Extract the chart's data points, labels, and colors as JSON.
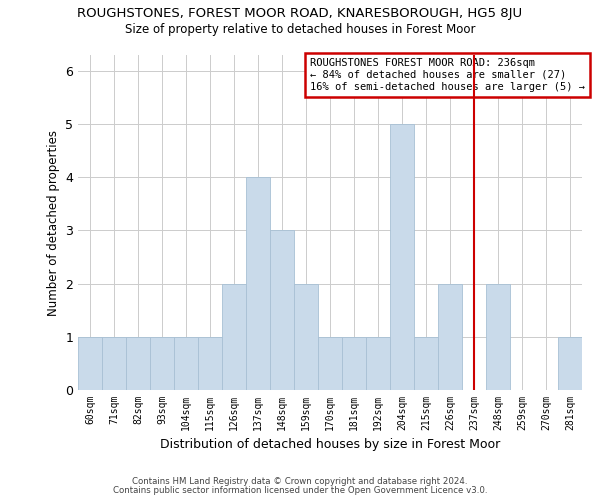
{
  "title": "ROUGHSTONES, FOREST MOOR ROAD, KNARESBOROUGH, HG5 8JU",
  "subtitle": "Size of property relative to detached houses in Forest Moor",
  "xlabel": "Distribution of detached houses by size in Forest Moor",
  "ylabel": "Number of detached properties",
  "bar_color": "#c9daea",
  "bar_edgecolor": "#a8c0d4",
  "categories": [
    "60sqm",
    "71sqm",
    "82sqm",
    "93sqm",
    "104sqm",
    "115sqm",
    "126sqm",
    "137sqm",
    "148sqm",
    "159sqm",
    "170sqm",
    "181sqm",
    "192sqm",
    "204sqm",
    "215sqm",
    "226sqm",
    "237sqm",
    "248sqm",
    "259sqm",
    "270sqm",
    "281sqm"
  ],
  "values": [
    1,
    1,
    1,
    1,
    1,
    1,
    2,
    4,
    3,
    2,
    1,
    1,
    1,
    5,
    1,
    2,
    0,
    2,
    0,
    0,
    1
  ],
  "ylim": [
    0,
    6.3
  ],
  "yticks": [
    0,
    1,
    2,
    3,
    4,
    5,
    6
  ],
  "vline_x": 16,
  "vline_color": "#cc0000",
  "annotation_text_line1": "ROUGHSTONES FOREST MOOR ROAD: 236sqm",
  "annotation_text_line2": "← 84% of detached houses are smaller (27)",
  "annotation_text_line3": "16% of semi-detached houses are larger (5) →",
  "footnote1": "Contains HM Land Registry data © Crown copyright and database right 2024.",
  "footnote2": "Contains public sector information licensed under the Open Government Licence v3.0.",
  "background_color": "#ffffff",
  "grid_color": "#cccccc"
}
